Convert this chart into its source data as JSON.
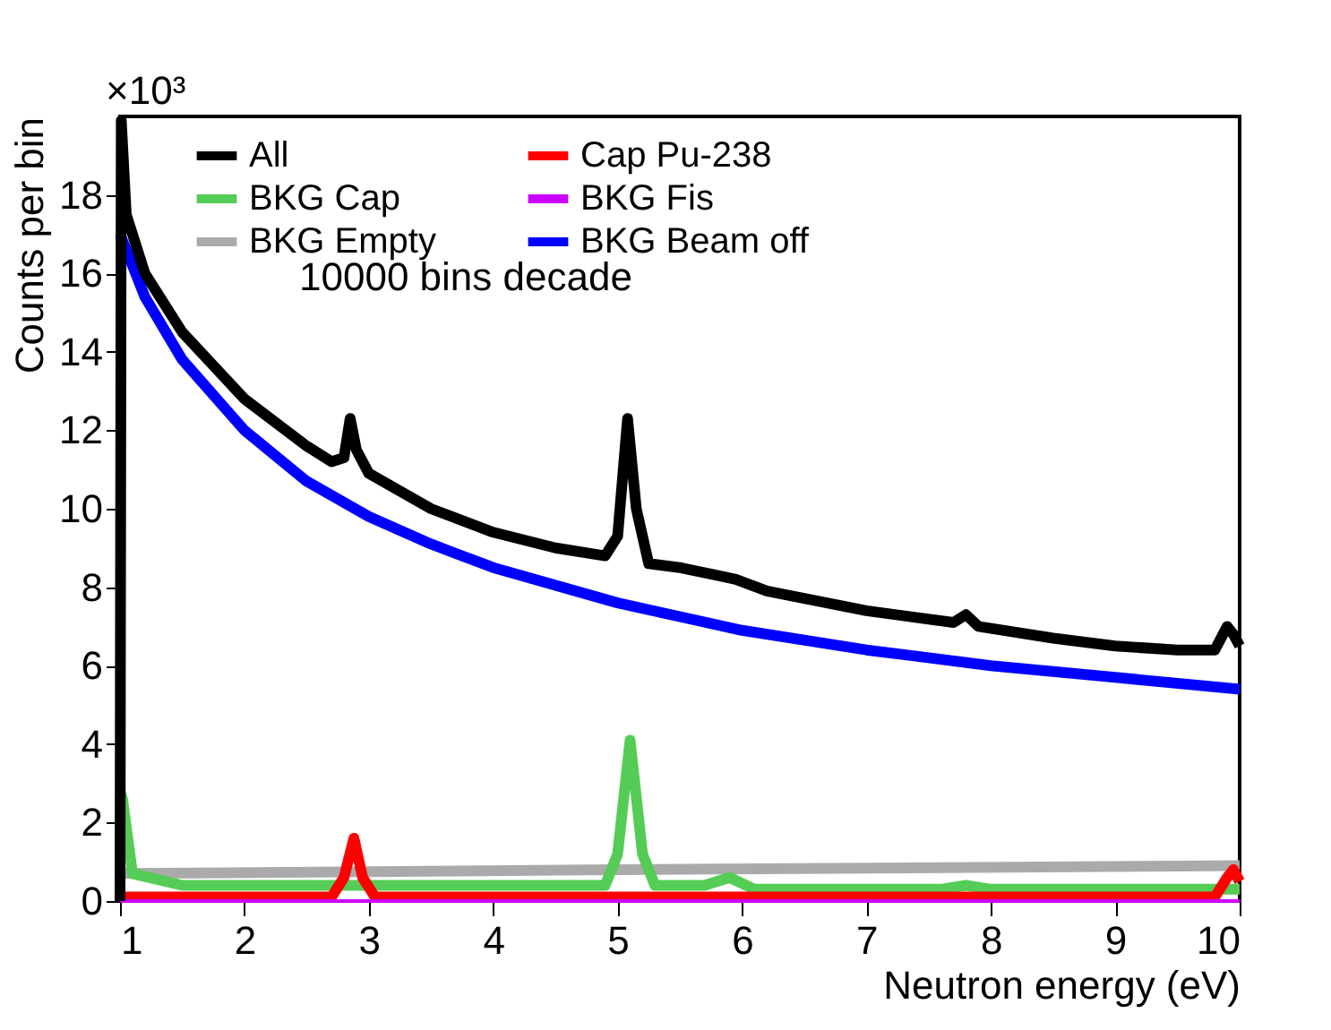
{
  "chart_data": {
    "type": "line",
    "xlabel": "Neutron energy (eV)",
    "ylabel": "Counts per bin",
    "annotations": [
      "×10³",
      "10000 bins decade"
    ],
    "xlim": [
      1,
      10
    ],
    "xticks": [
      1,
      2,
      3,
      4,
      5,
      6,
      7,
      8,
      9,
      10
    ],
    "ylim": [
      0,
      20
    ],
    "yticks": [
      0,
      2,
      4,
      6,
      8,
      10,
      12,
      14,
      16,
      18
    ],
    "grid": false,
    "legend": "top",
    "marker": "none",
    "line_style": "solid",
    "series": [
      {
        "name": "All",
        "color": "#000000",
        "x": [
          1.0,
          1.01,
          1.05,
          1.2,
          1.5,
          2.0,
          2.5,
          2.7,
          2.8,
          2.85,
          2.9,
          3.0,
          3.5,
          4.0,
          4.5,
          4.9,
          5.0,
          5.08,
          5.15,
          5.25,
          5.5,
          5.8,
          5.95,
          6.2,
          7.0,
          7.7,
          7.8,
          7.9,
          8.5,
          9.0,
          9.5,
          9.8,
          9.9,
          9.95,
          10.0
        ],
        "values": [
          0,
          19.9,
          17.5,
          16.0,
          14.5,
          12.8,
          11.6,
          11.2,
          11.3,
          12.3,
          11.5,
          10.9,
          10.0,
          9.4,
          9.0,
          8.8,
          9.3,
          12.3,
          10.0,
          8.6,
          8.5,
          8.3,
          8.2,
          7.9,
          7.4,
          7.1,
          7.3,
          7.0,
          6.7,
          6.5,
          6.4,
          6.4,
          7.0,
          6.8,
          6.5
        ]
      },
      {
        "name": "Cap Pu-238",
        "color": "#ff0000",
        "x": [
          1.0,
          2.7,
          2.8,
          2.88,
          2.95,
          3.05,
          9.8,
          9.9,
          9.95,
          10.0
        ],
        "values": [
          0.1,
          0.1,
          0.6,
          1.6,
          0.6,
          0.1,
          0.1,
          0.6,
          0.8,
          0.5
        ]
      },
      {
        "name": "BKG Cap",
        "color": "#55cc55",
        "x": [
          1.0,
          1.02,
          1.1,
          1.5,
          4.9,
          5.0,
          5.1,
          5.2,
          5.3,
          5.7,
          5.9,
          6.1,
          7.6,
          7.8,
          8.0,
          10.0
        ],
        "values": [
          2.8,
          2.6,
          0.7,
          0.4,
          0.4,
          1.2,
          4.1,
          1.2,
          0.4,
          0.4,
          0.6,
          0.3,
          0.3,
          0.4,
          0.3,
          0.3
        ]
      },
      {
        "name": "BKG Fis",
        "color": "#cc00ff",
        "x": [
          1.0,
          10.0
        ],
        "values": [
          0,
          0
        ]
      },
      {
        "name": "BKG Empty",
        "color": "#aaaaaa",
        "x": [
          1.0,
          5.0,
          10.0
        ],
        "values": [
          0.7,
          0.8,
          0.9
        ]
      },
      {
        "name": "BKG Beam off",
        "color": "#0000ff",
        "x": [
          1.0,
          1.2,
          1.5,
          2.0,
          2.5,
          3.0,
          3.5,
          4.0,
          5.0,
          6.0,
          7.0,
          8.0,
          9.0,
          10.0
        ],
        "values": [
          17.0,
          15.4,
          13.8,
          12.0,
          10.7,
          9.8,
          9.1,
          8.5,
          7.6,
          6.9,
          6.4,
          6.0,
          5.7,
          5.4
        ]
      }
    ]
  }
}
